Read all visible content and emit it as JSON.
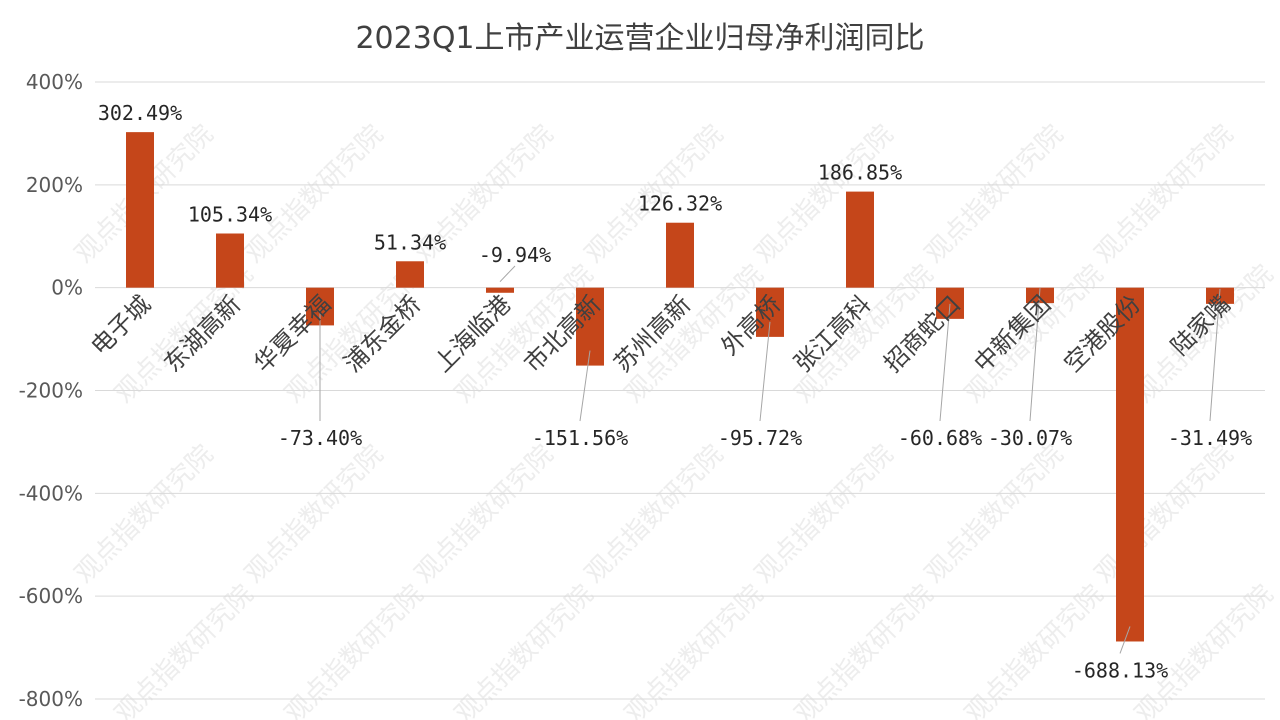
{
  "chart_data": {
    "type": "bar",
    "title": "2023Q1上市产业运营企业归母净利润同比",
    "xlabel": "",
    "ylabel": "",
    "ylim": [
      -800,
      400
    ],
    "yticks": [
      "400%",
      "200%",
      "0%",
      "-200%",
      "-400%",
      "-600%",
      "-800%"
    ],
    "ytick_values": [
      400,
      200,
      0,
      -200,
      -400,
      -600,
      -800
    ],
    "grid": true,
    "legend": "none",
    "bar_color": "#C5461A",
    "categories": [
      "电子城",
      "东湖高新",
      "华夏幸福",
      "浦东金桥",
      "上海临港",
      "市北高新",
      "苏州高新",
      "外高桥",
      "张江高科",
      "招商蛇口",
      "中新集团",
      "空港股份",
      "陆家嘴"
    ],
    "values": [
      302.49,
      105.34,
      -73.4,
      51.34,
      -9.94,
      -151.56,
      126.32,
      -95.72,
      186.85,
      -60.68,
      -30.07,
      -688.13,
      -31.49
    ],
    "data_labels": [
      "302.49%",
      "105.34%",
      "-73.40%",
      "51.34%",
      "-9.94%",
      "-151.56%",
      "126.32%",
      "-95.72%",
      "186.85%",
      "-60.68%",
      "-30.07%",
      "-688.13%",
      "-31.49%"
    ]
  }
}
